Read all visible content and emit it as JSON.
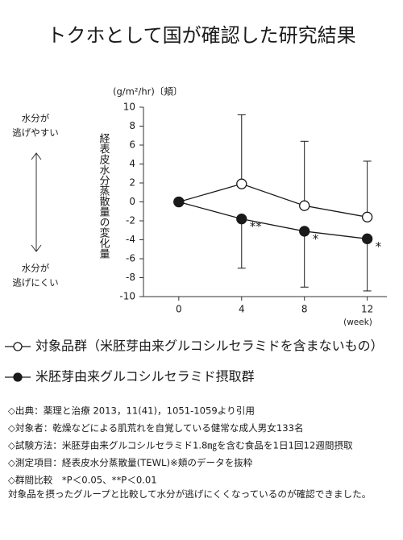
{
  "title": "トクホとして国が確認した研究結果",
  "chart_data": {
    "type": "line",
    "y_unit_label": "(g/m²/hr)〔頬〕",
    "y_axis_label": "経表皮水分蒸散量の変化量",
    "x_unit_label": "(week)",
    "left_top_label": [
      "水分が",
      "逃げやすい"
    ],
    "left_bottom_label": [
      "水分が",
      "逃げにくい"
    ],
    "x": [
      0,
      4,
      8,
      12
    ],
    "xlim": [
      -2.25,
      13.25
    ],
    "xticks": [
      0,
      4,
      8,
      12
    ],
    "ylim": [
      -10,
      10
    ],
    "yticks": [
      -10,
      -8,
      -6,
      -4,
      -2,
      0,
      2,
      4,
      6,
      8,
      10
    ],
    "series": [
      {
        "name": "対象品群（米胚芽由来グルコシルセラミドを含まないもの）",
        "marker": "open",
        "color": "#1a1a1a",
        "values": [
          0,
          1.9,
          -0.4,
          -1.6
        ],
        "errors": [
          null,
          7.3,
          6.8,
          5.9
        ],
        "error_direction": "up"
      },
      {
        "name": "米胚芽由来グルコシルセラミド摂取群",
        "marker": "filled",
        "color": "#1a1a1a",
        "values": [
          0,
          -1.8,
          -3.1,
          -3.9
        ],
        "errors": [
          null,
          5.2,
          5.9,
          5.5
        ],
        "error_direction": "down",
        "significance": [
          null,
          "**",
          "*",
          "*"
        ]
      }
    ]
  },
  "notes": [
    "◇出典：薬理と治療 2013，11(41)，1051-1059より引用",
    "◇対象者：乾燥などによる肌荒れを自覚している健常な成人男女133名",
    "◇試験方法：米胚芽由来グルコシルセラミド1.8㎎を含む食品を1日1回12週間摂取",
    "◇測定項目：経表皮水分蒸散量(TEWL)※頬のデータを抜粋",
    "◇群間比較　*P＜0.05、**P＜0.01",
    "対象品を摂ったグループと比較して水分が逃げにくくなっているのが確認できました。"
  ]
}
